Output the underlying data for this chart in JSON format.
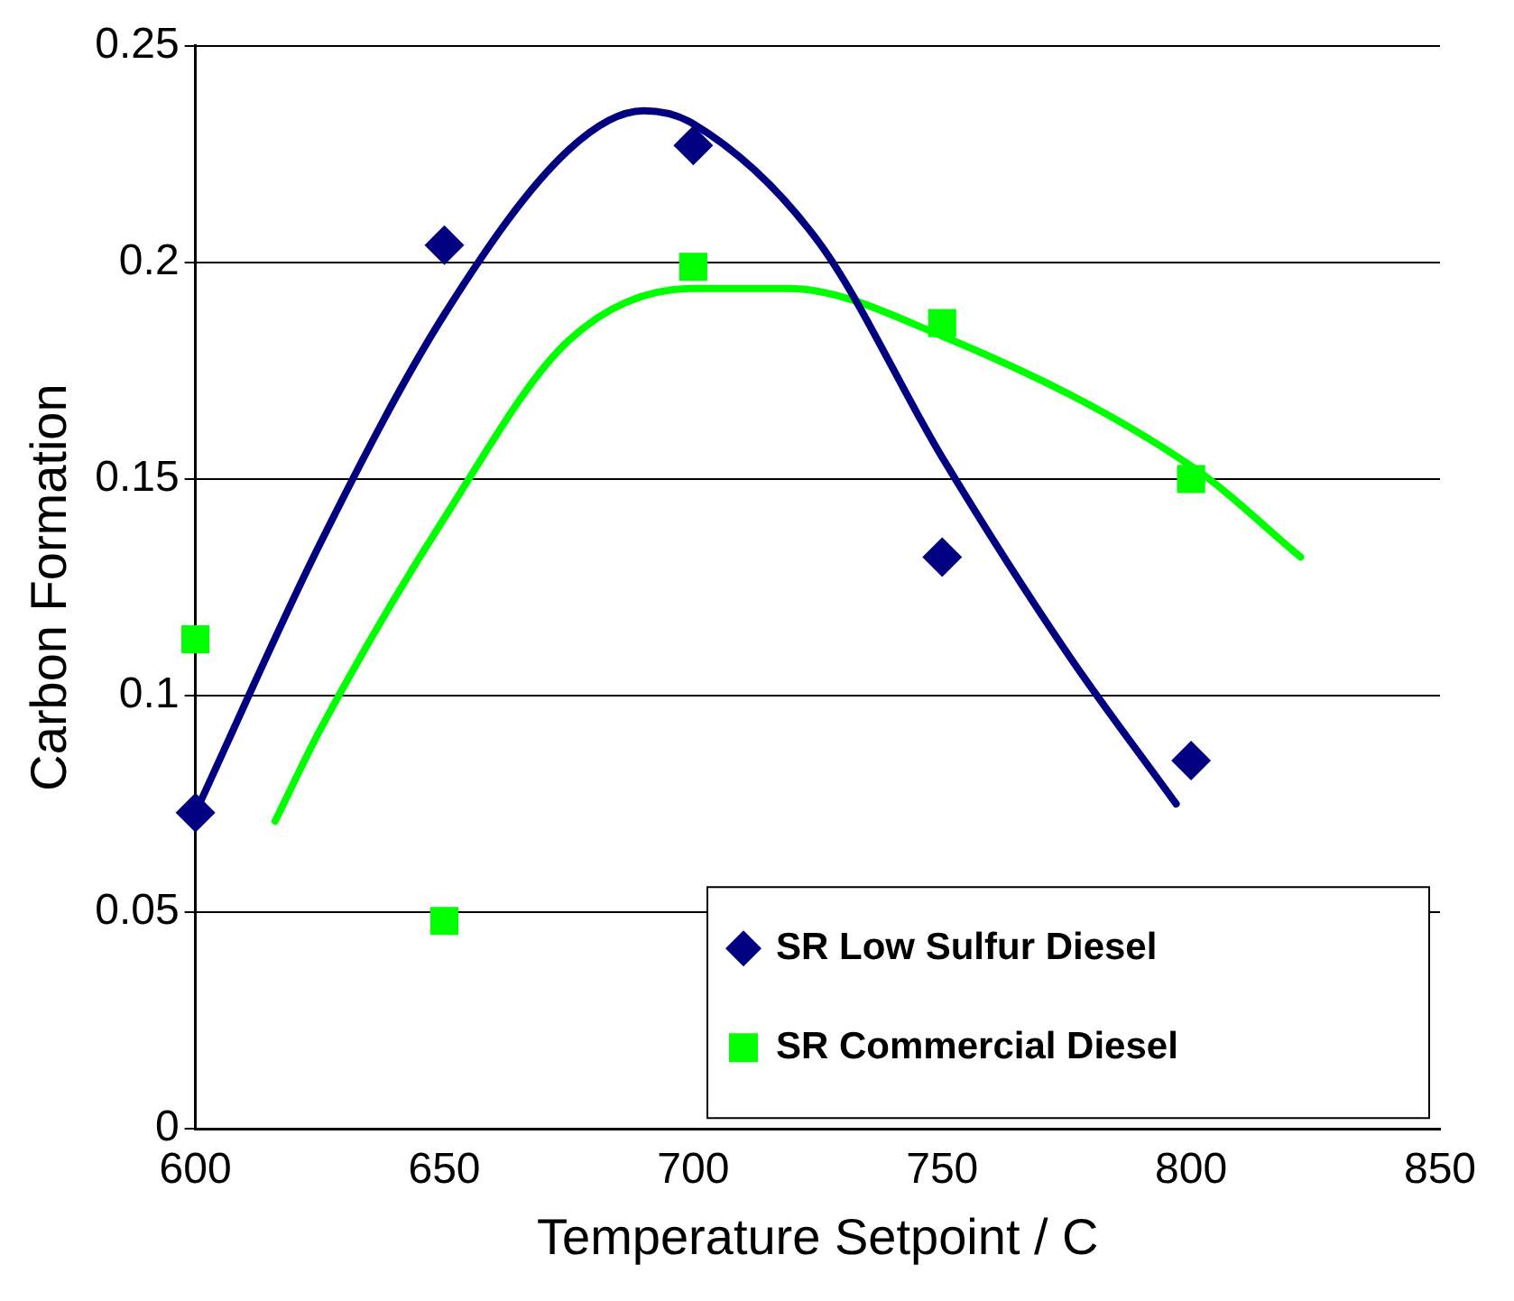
{
  "chart_data": {
    "type": "scatter",
    "xlabel": "Temperature Setpoint / C",
    "ylabel": "Carbon Formation",
    "xlim": [
      600,
      850
    ],
    "xticks": [
      600,
      650,
      700,
      750,
      800,
      850
    ],
    "ylim": [
      0,
      0.25
    ],
    "yticks": [
      0,
      0.05,
      0.1,
      0.15,
      0.2,
      0.25
    ],
    "grid": "y",
    "legend": "bottom right",
    "series": [
      {
        "name": "SR Low Sulfur Diesel",
        "marker": "diamond",
        "color": "#000080",
        "x": [
          600,
          650,
          700,
          750,
          800
        ],
        "values": [
          0.073,
          0.204,
          0.227,
          0.132,
          0.085
        ]
      },
      {
        "name": "SR Commercial Diesel",
        "marker": "square",
        "color": "#00ff00",
        "x": [
          600,
          650,
          700,
          750,
          800
        ],
        "values": [
          0.113,
          0.048,
          0.199,
          0.186,
          0.15
        ]
      },
      {
        "type": "line",
        "marker": "none",
        "color": "#000080",
        "x": [
          600,
          625,
          650,
          675,
          690,
          700,
          725,
          750,
          775,
          797
        ],
        "values": [
          0.073,
          0.135,
          0.188,
          0.226,
          0.235,
          0.232,
          0.205,
          0.155,
          0.11,
          0.075
        ]
      },
      {
        "type": "line",
        "marker": "none",
        "color": "#00ff00",
        "x": [
          616,
          625,
          650,
          675,
          700,
          719,
          750,
          800,
          822
        ],
        "values": [
          0.071,
          0.092,
          0.141,
          0.182,
          0.194,
          0.194,
          0.183,
          0.153,
          0.132
        ]
      }
    ]
  }
}
